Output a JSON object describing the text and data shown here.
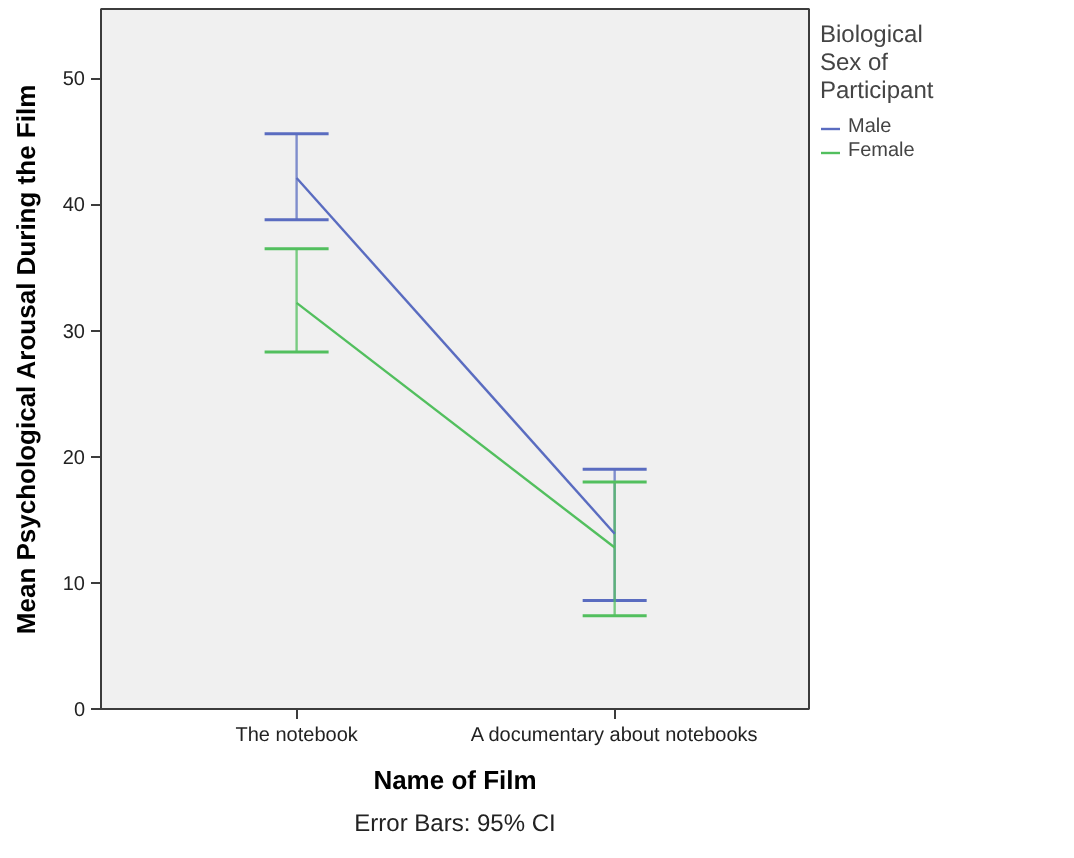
{
  "chart_data": {
    "type": "line",
    "xlabel": "Name of Film",
    "ylabel": "Mean Psychological Arousal During the Film",
    "legend_title": "Biological Sex of Participant",
    "annotations": [
      "Error Bars: 95% CI"
    ],
    "categories": [
      "The notebook",
      "A documentary about notebooks"
    ],
    "series": [
      {
        "name": "Male",
        "color": "#5a6cc0",
        "values": [
          42.1,
          13.9
        ],
        "errors": [
          [
            38.8,
            45.6
          ],
          [
            8.6,
            19.0
          ]
        ]
      },
      {
        "name": "Female",
        "color": "#52bf5e",
        "values": [
          32.2,
          12.8
        ],
        "errors": [
          [
            28.3,
            36.5
          ],
          [
            7.4,
            18.0
          ]
        ]
      }
    ],
    "ylim": [
      0,
      55.5
    ],
    "yticks": [
      0,
      10,
      20,
      30,
      40,
      50
    ],
    "grid": false,
    "legend": "top right",
    "marker": "none",
    "line_style": "solid"
  }
}
